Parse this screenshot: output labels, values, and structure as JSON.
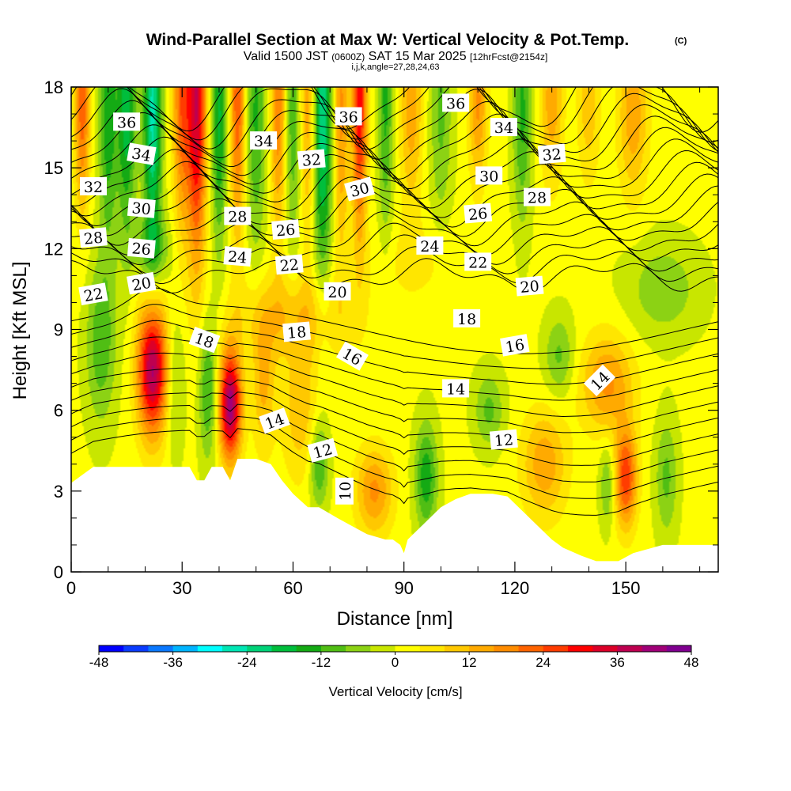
{
  "chart_data": {
    "type": "heatmap",
    "title": "Wind-Parallel Section at Max W: Vertical Velocity & Pot.Temp.",
    "copyright_mark": "(C)",
    "subtitle_parts": {
      "valid_a": "Valid 1500 JST",
      "zulu": "(0600Z)",
      "valid_b": "SAT 15 Mar 2025",
      "forecast": "[12hrFcst@2154z]"
    },
    "subtitle2": "i,j,k,angle=27,28,24,63",
    "xlabel": "Distance [nm]",
    "ylabel": "Height [Kft MSL]",
    "xlim": [
      0,
      175
    ],
    "ylim": [
      0,
      18
    ],
    "x_ticks": [
      "0",
      "30",
      "60",
      "90",
      "120",
      "150"
    ],
    "x_tick_values": [
      0,
      30,
      60,
      90,
      120,
      150
    ],
    "y_ticks": [
      "0",
      "3",
      "6",
      "9",
      "12",
      "15",
      "18"
    ],
    "y_tick_values": [
      0,
      3,
      6,
      9,
      12,
      15,
      18
    ],
    "colorbar": {
      "label": "Vertical Velocity [cm/s]",
      "min": -48,
      "max": 48,
      "step": 4,
      "tick_labels": [
        "-48",
        "-36",
        "-24",
        "-12",
        "0",
        "12",
        "24",
        "36",
        "48"
      ],
      "tick_values": [
        -48,
        -36,
        -24,
        -12,
        0,
        12,
        24,
        36,
        48
      ],
      "colors": [
        "#0000ff",
        "#0a3cff",
        "#0a78ff",
        "#00b4ff",
        "#00ffff",
        "#00e6b4",
        "#00d278",
        "#00be3c",
        "#14aa14",
        "#50be14",
        "#8cd214",
        "#c8e600",
        "#ffff00",
        "#ffe600",
        "#ffc800",
        "#ffaa00",
        "#ff8c00",
        "#ff6400",
        "#ff3c00",
        "#ff0000",
        "#dc0028",
        "#be0050",
        "#a00078",
        "#800090"
      ]
    },
    "terrain_kft": [
      [
        0,
        3.3
      ],
      [
        3,
        3.6
      ],
      [
        6,
        3.9
      ],
      [
        14,
        3.9
      ],
      [
        32,
        3.9
      ],
      [
        34,
        3.4
      ],
      [
        36,
        3.4
      ],
      [
        38,
        3.9
      ],
      [
        41,
        3.9
      ],
      [
        43,
        3.4
      ],
      [
        45,
        4.2
      ],
      [
        50,
        4.2
      ],
      [
        54,
        4.0
      ],
      [
        57,
        3.4
      ],
      [
        60,
        2.9
      ],
      [
        64,
        2.4
      ],
      [
        67,
        2.4
      ],
      [
        72,
        2.0
      ],
      [
        76,
        1.7
      ],
      [
        80,
        1.4
      ],
      [
        85,
        1.2
      ],
      [
        87,
        1.2
      ],
      [
        89,
        1.0
      ],
      [
        90,
        0.7
      ],
      [
        91,
        1.2
      ],
      [
        94,
        1.6
      ],
      [
        97,
        2.0
      ],
      [
        100,
        2.4
      ],
      [
        104,
        2.7
      ],
      [
        108,
        2.9
      ],
      [
        114,
        2.9
      ],
      [
        118,
        2.8
      ],
      [
        121,
        2.4
      ],
      [
        124,
        2.0
      ],
      [
        127,
        1.6
      ],
      [
        130,
        1.2
      ],
      [
        133,
        0.9
      ],
      [
        138,
        0.6
      ],
      [
        142,
        0.4
      ],
      [
        148,
        0.4
      ],
      [
        152,
        0.7
      ],
      [
        160,
        1.0
      ],
      [
        175,
        1.0
      ]
    ],
    "w_field": {
      "background": 1,
      "features": [
        {
          "x": 22,
          "z": 7.5,
          "sx": 4,
          "sz": 2.4,
          "w": 40
        },
        {
          "x": 43,
          "z": 6.2,
          "sx": 3,
          "sz": 2.0,
          "w": 42
        },
        {
          "x": 37,
          "z": 6.8,
          "sx": 2.5,
          "sz": 2.6,
          "w": -14
        },
        {
          "x": 28,
          "z": 7.0,
          "sx": 2.5,
          "sz": 2.6,
          "w": -8
        },
        {
          "x": 8,
          "z": 8.5,
          "sx": 4,
          "sz": 3.0,
          "w": -12
        },
        {
          "x": 52,
          "z": 7.0,
          "sx": 3,
          "sz": 2.5,
          "w": 12
        },
        {
          "x": 62,
          "z": 6.0,
          "sx": 5,
          "sz": 2.6,
          "w": 10
        },
        {
          "x": 67,
          "z": 4.0,
          "sx": 2.5,
          "sz": 1.6,
          "w": -14
        },
        {
          "x": 82,
          "z": 3.0,
          "sx": 5,
          "sz": 1.6,
          "w": 16
        },
        {
          "x": 96,
          "z": 3.5,
          "sx": 3,
          "sz": 2.0,
          "w": -16
        },
        {
          "x": 113,
          "z": 6.0,
          "sx": 4,
          "sz": 1.4,
          "w": -10
        },
        {
          "x": 128,
          "z": 4.0,
          "sx": 6,
          "sz": 2.0,
          "w": 14
        },
        {
          "x": 132,
          "z": 8.0,
          "sx": 4,
          "sz": 1.5,
          "w": -10
        },
        {
          "x": 145,
          "z": 7.0,
          "sx": 7,
          "sz": 1.8,
          "w": 16
        },
        {
          "x": 150,
          "z": 3.5,
          "sx": 3,
          "sz": 1.8,
          "w": 26
        },
        {
          "x": 161,
          "z": 3.5,
          "sx": 3,
          "sz": 2.2,
          "w": -10
        },
        {
          "x": 145,
          "z": 3.2,
          "sx": 2,
          "sz": 1.5,
          "w": -10
        },
        {
          "x": 60,
          "z": 9.5,
          "sx": 16,
          "sz": 1.6,
          "w": 10
        },
        {
          "x": 22,
          "z": 12.0,
          "sx": 5,
          "sz": 1.2,
          "w": -10
        },
        {
          "x": 160,
          "z": 10.5,
          "sx": 10,
          "sz": 1.8,
          "w": -8
        },
        {
          "x": 95,
          "z": 11.5,
          "sx": 16,
          "sz": 1.5,
          "w": 4
        }
      ],
      "streaks": [
        {
          "x": 3,
          "top": 17.5,
          "sx": 2.0,
          "sz": 4.0,
          "w": 22
        },
        {
          "x": 10,
          "top": 17.0,
          "sx": 2.5,
          "sz": 5.0,
          "w": -16
        },
        {
          "x": 15,
          "top": 17.5,
          "sx": 2.5,
          "sz": 5.0,
          "w": -20
        },
        {
          "x": 22,
          "top": 17.0,
          "sx": 2.5,
          "sz": 5.0,
          "w": -26
        },
        {
          "x": 30,
          "top": 17.8,
          "sx": 2.5,
          "sz": 5.0,
          "w": 22
        },
        {
          "x": 34,
          "top": 17.5,
          "sx": 2.5,
          "sz": 6.0,
          "w": 34
        },
        {
          "x": 40,
          "top": 17.0,
          "sx": 2.0,
          "sz": 5.0,
          "w": -18
        },
        {
          "x": 45,
          "top": 17.5,
          "sx": 2.0,
          "sz": 5.0,
          "w": 22
        },
        {
          "x": 50,
          "top": 17.0,
          "sx": 2.5,
          "sz": 5.0,
          "w": -14
        },
        {
          "x": 56,
          "top": 17.5,
          "sx": 2.0,
          "sz": 5.0,
          "w": 18
        },
        {
          "x": 60,
          "top": 17.0,
          "sx": 2.0,
          "sz": 5.0,
          "w": -12
        },
        {
          "x": 64,
          "top": 17.5,
          "sx": 2.0,
          "sz": 5.0,
          "w": 14
        },
        {
          "x": 68,
          "top": 17.0,
          "sx": 2.5,
          "sz": 6.0,
          "w": -24
        },
        {
          "x": 73,
          "top": 17.0,
          "sx": 2.0,
          "sz": 5.0,
          "w": 16
        },
        {
          "x": 78,
          "top": 17.5,
          "sx": 2.0,
          "sz": 5.0,
          "w": 30
        },
        {
          "x": 85,
          "top": 17.5,
          "sx": 2.0,
          "sz": 5.0,
          "w": -14
        },
        {
          "x": 92,
          "top": 17.5,
          "sx": 3.0,
          "sz": 4.0,
          "w": 14
        },
        {
          "x": 100,
          "top": 17.0,
          "sx": 3.0,
          "sz": 4.0,
          "w": -10
        },
        {
          "x": 110,
          "top": 17.5,
          "sx": 2.5,
          "sz": 3.0,
          "w": 16
        },
        {
          "x": 122,
          "top": 17.0,
          "sx": 2.5,
          "sz": 4.0,
          "w": -14
        },
        {
          "x": 130,
          "top": 17.5,
          "sx": 3.0,
          "sz": 3.0,
          "w": 14
        },
        {
          "x": 140,
          "top": 17.5,
          "sx": 3.0,
          "sz": 3.0,
          "w": 10
        },
        {
          "x": 152,
          "top": 17.0,
          "sx": 4.0,
          "sz": 3.0,
          "w": 14
        }
      ]
    },
    "theta_contours": {
      "levels_c": [
        10,
        11,
        12,
        13,
        14,
        15,
        16,
        17,
        18,
        19,
        20,
        21,
        22,
        23,
        24,
        25,
        26,
        27,
        28,
        29,
        30,
        31,
        32,
        33,
        34,
        35,
        36,
        37,
        38
      ],
      "color": "#000000"
    },
    "contour_labels": [
      {
        "text": "36",
        "x": 15,
        "z": 16.7,
        "angle": 0
      },
      {
        "text": "34",
        "x": 19,
        "z": 15.5,
        "angle": 10
      },
      {
        "text": "32",
        "x": 6,
        "z": 14.3,
        "angle": 0
      },
      {
        "text": "30",
        "x": 19,
        "z": 13.5,
        "angle": 5
      },
      {
        "text": "28",
        "x": 6,
        "z": 12.4,
        "angle": -5
      },
      {
        "text": "26",
        "x": 19,
        "z": 12.0,
        "angle": 5
      },
      {
        "text": "22",
        "x": 6,
        "z": 10.3,
        "angle": -10
      },
      {
        "text": "20",
        "x": 19,
        "z": 10.7,
        "angle": -10
      },
      {
        "text": "18",
        "x": 36,
        "z": 8.6,
        "angle": 20
      },
      {
        "text": "34",
        "x": 52,
        "z": 16.0,
        "angle": 0
      },
      {
        "text": "28",
        "x": 45,
        "z": 13.2,
        "angle": 0
      },
      {
        "text": "24",
        "x": 45,
        "z": 11.7,
        "angle": 5
      },
      {
        "text": "26",
        "x": 58,
        "z": 12.7,
        "angle": -5
      },
      {
        "text": "22",
        "x": 59,
        "z": 11.4,
        "angle": -5
      },
      {
        "text": "32",
        "x": 65,
        "z": 15.3,
        "angle": -5
      },
      {
        "text": "36",
        "x": 75,
        "z": 16.9,
        "angle": 0
      },
      {
        "text": "30",
        "x": 78,
        "z": 14.2,
        "angle": -15
      },
      {
        "text": "20",
        "x": 72,
        "z": 10.4,
        "angle": 0
      },
      {
        "text": "18",
        "x": 61,
        "z": 8.9,
        "angle": -5
      },
      {
        "text": "16",
        "x": 76,
        "z": 8.0,
        "angle": 30
      },
      {
        "text": "14",
        "x": 55,
        "z": 5.6,
        "angle": -20
      },
      {
        "text": "12",
        "x": 68,
        "z": 4.5,
        "angle": -15
      },
      {
        "text": "10",
        "x": 74,
        "z": 3.0,
        "angle": -90
      },
      {
        "text": "36",
        "x": 104,
        "z": 17.4,
        "angle": 0
      },
      {
        "text": "34",
        "x": 117,
        "z": 16.5,
        "angle": 0
      },
      {
        "text": "32",
        "x": 130,
        "z": 15.5,
        "angle": -5
      },
      {
        "text": "30",
        "x": 113,
        "z": 14.7,
        "angle": 0
      },
      {
        "text": "28",
        "x": 126,
        "z": 13.9,
        "angle": 0
      },
      {
        "text": "26",
        "x": 110,
        "z": 13.3,
        "angle": -5
      },
      {
        "text": "24",
        "x": 97,
        "z": 12.1,
        "angle": 0
      },
      {
        "text": "22",
        "x": 110,
        "z": 11.5,
        "angle": 0
      },
      {
        "text": "20",
        "x": 124,
        "z": 10.6,
        "angle": -5
      },
      {
        "text": "18",
        "x": 107,
        "z": 9.4,
        "angle": 0
      },
      {
        "text": "16",
        "x": 120,
        "z": 8.4,
        "angle": -10
      },
      {
        "text": "14",
        "x": 104,
        "z": 6.8,
        "angle": 0
      },
      {
        "text": "12",
        "x": 117,
        "z": 4.9,
        "angle": -5
      },
      {
        "text": "14",
        "x": 143,
        "z": 7.1,
        "angle": -45
      }
    ]
  }
}
